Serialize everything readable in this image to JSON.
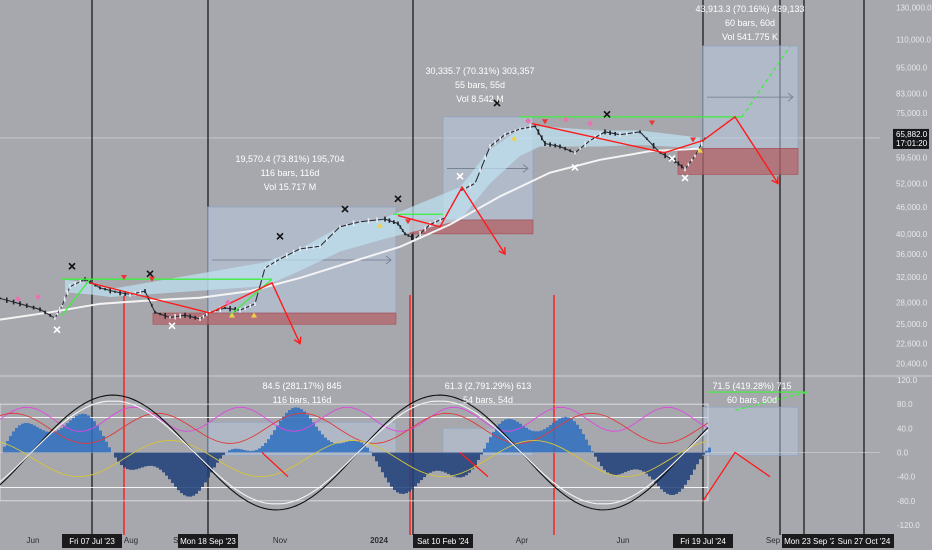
{
  "chart_data": [
    {
      "type": "candlestick-with-indicators",
      "price_axis": {
        "scale": "log",
        "ticks": [
          "130,000.0",
          "110,000.0",
          "95,000.0",
          "83,000.0",
          "75,000.0",
          "65,882.0",
          "59,500.0",
          "52,000.0",
          "46,000.0",
          "40,000.0",
          "36,000.0",
          "32,000.0",
          "28,000.0",
          "25,000.0",
          "22,600.0",
          "20,400.0"
        ],
        "tick_values": [
          130000,
          110000,
          95000,
          83000,
          75000,
          65882,
          59500,
          52000,
          46000,
          40000,
          36000,
          32000,
          28000,
          25000,
          22600,
          20400
        ],
        "range": [
          19500,
          135000
        ]
      },
      "current_price": {
        "label": "65,882.0",
        "countdown": "17:01:20",
        "value": 65882
      },
      "time_axis": {
        "month_labels": [
          "Jun",
          "Aug",
          "Se",
          "Nov",
          "2024",
          "Apr",
          "Jun",
          "Sep"
        ],
        "date_flags": [
          "Fri 07 Jul '23",
          "Mon 18 Sep '23",
          "Sat 10 Feb '24",
          "Fri 19 Jul '24",
          "Mon 23 Sep '24",
          "Sun 27 Oct '24"
        ]
      },
      "projections": [
        {
          "lines": [
            "19,570.4 (73.81%) 195,704",
            "116 bars, 116d",
            "Vol 15.717 M"
          ],
          "from": 26500,
          "to": 46000
        },
        {
          "lines": [
            "30,335.7 (70.31%) 303,357",
            "55 bars, 55d",
            "Vol 8.542 M"
          ],
          "from": 43000,
          "to": 73500
        },
        {
          "lines": [
            "43,913.3 (70.16%) 439,133",
            "60 bars, 60d",
            "Vol 541.775 K"
          ],
          "from": 62400,
          "to": 106300
        }
      ],
      "price_series": {
        "approx_close_path": [
          [
            0,
            28600
          ],
          [
            20,
            27800
          ],
          [
            40,
            27000
          ],
          [
            55,
            25800
          ],
          [
            62,
            27500
          ],
          [
            70,
            30400
          ],
          [
            85,
            31600
          ],
          [
            100,
            30200
          ],
          [
            115,
            29600
          ],
          [
            130,
            29200
          ],
          [
            145,
            29700
          ],
          [
            155,
            26600
          ],
          [
            170,
            25900
          ],
          [
            185,
            26200
          ],
          [
            200,
            25700
          ],
          [
            210,
            26600
          ],
          [
            225,
            27200
          ],
          [
            240,
            26900
          ],
          [
            255,
            27800
          ],
          [
            265,
            33500
          ],
          [
            280,
            35100
          ],
          [
            300,
            37000
          ],
          [
            320,
            37500
          ],
          [
            340,
            41500
          ],
          [
            360,
            42600
          ],
          [
            385,
            43200
          ],
          [
            398,
            42200
          ],
          [
            405,
            40000
          ],
          [
            415,
            39000
          ],
          [
            430,
            42000
          ],
          [
            445,
            43500
          ],
          [
            460,
            50000
          ],
          [
            475,
            52000
          ],
          [
            490,
            63000
          ],
          [
            505,
            67000
          ],
          [
            520,
            69000
          ],
          [
            535,
            70000
          ],
          [
            545,
            64000
          ],
          [
            560,
            63000
          ],
          [
            575,
            61000
          ],
          [
            590,
            65000
          ],
          [
            605,
            68000
          ],
          [
            620,
            67000
          ],
          [
            640,
            68000
          ],
          [
            660,
            61000
          ],
          [
            675,
            58500
          ],
          [
            685,
            56000
          ],
          [
            695,
            60000
          ],
          [
            705,
            66000
          ]
        ],
        "ma_path": [
          [
            0,
            25600
          ],
          [
            50,
            26600
          ],
          [
            100,
            27800
          ],
          [
            150,
            28300
          ],
          [
            200,
            28700
          ],
          [
            250,
            29700
          ],
          [
            300,
            31800
          ],
          [
            350,
            34500
          ],
          [
            400,
            37400
          ],
          [
            450,
            42000
          ],
          [
            500,
            48600
          ],
          [
            550,
            55000
          ],
          [
            600,
            58800
          ],
          [
            650,
            61500
          ],
          [
            700,
            62300
          ]
        ]
      },
      "oscillator": {
        "ticks": [
          "120.0",
          "80.0",
          "40.0",
          "0.0",
          "-40.0",
          "-80.0",
          "-120.0"
        ],
        "tick_values": [
          120,
          80,
          40,
          0,
          -40,
          -80,
          -120
        ],
        "annotations": [
          {
            "lines": [
              "84.5 (281.17%) 845",
              "116 bars, 116d"
            ]
          },
          {
            "lines": [
              "61.3 (2,791.29%) 613",
              "54 bars, 54d"
            ]
          },
          {
            "lines": [
              "71.5 (419.28%) 715",
              "60 bars, 60d"
            ]
          }
        ]
      }
    }
  ],
  "colors": {
    "background": "#a6a8ad",
    "projection_box": "#b9c8e0",
    "stop_box": "#b4656c",
    "green_line": "#3cf03c",
    "red_arrow": "#ff1a1a",
    "ma_line": "#f4f4f4"
  }
}
